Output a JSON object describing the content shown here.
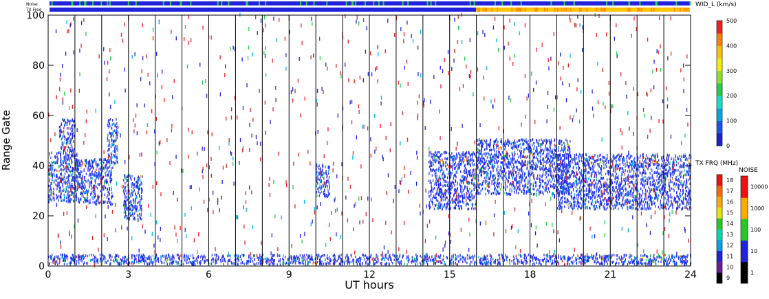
{
  "chart_data": {
    "type": "heatmap",
    "xlabel": "UT hours",
    "ylabel": "Range Gate",
    "xlim": [
      0,
      24
    ],
    "ylim": [
      0,
      100
    ],
    "x_ticks": [
      0,
      3,
      6,
      9,
      12,
      15,
      18,
      21,
      24
    ],
    "y_ticks": [
      0,
      20,
      40,
      60,
      80,
      100
    ],
    "hour_separators": [
      1,
      2,
      3,
      4,
      5,
      6,
      7,
      8,
      9,
      10,
      11,
      12,
      13,
      14,
      15,
      16,
      17,
      18,
      19,
      20,
      21,
      22,
      23
    ],
    "grid": false,
    "top_strips": {
      "noise_label": "Noise",
      "txfreq_label": "TX Freq",
      "txfreq_switch_hour": 16
    },
    "colorbars": {
      "width": {
        "label": "WID_L (km/s)",
        "ticks": [
          0,
          100,
          200,
          300,
          400,
          500
        ],
        "colors": [
          "#1a22cc",
          "#1a55ee",
          "#00a6e6",
          "#14e0c8",
          "#22d046",
          "#8ee028",
          "#f0f000",
          "#ffc000",
          "#ff8000",
          "#ee2222"
        ]
      },
      "tx_freq": {
        "label": "TX FRQ (MHz)",
        "ticks": [
          9,
          10,
          11,
          12,
          13,
          14,
          15,
          16,
          17,
          18
        ],
        "colors": [
          "#000000",
          "#6a1e92",
          "#2222dd",
          "#00a2e8",
          "#00d9b4",
          "#22cc22",
          "#e6e600",
          "#ffaa00",
          "#ff6600",
          "#ee1111"
        ]
      },
      "noise": {
        "label": "NOISE",
        "ticks": [
          "1",
          "10",
          "100",
          "1000",
          "10000"
        ],
        "colors": [
          "#000000",
          "#2222dd",
          "#22cc22",
          "#ffaa00",
          "#ee1111"
        ]
      }
    },
    "echo_regions": [
      {
        "x": [
          0.0,
          1.1
        ],
        "y": [
          25,
          45
        ]
      },
      {
        "x": [
          0.4,
          1.0
        ],
        "y": [
          45,
          58
        ]
      },
      {
        "x": [
          1.0,
          2.4
        ],
        "y": [
          24,
          42
        ]
      },
      {
        "x": [
          2.2,
          2.6
        ],
        "y": [
          40,
          58
        ]
      },
      {
        "x": [
          2.8,
          3.5
        ],
        "y": [
          22,
          36
        ]
      },
      {
        "x": [
          2.8,
          3.5
        ],
        "y": [
          18,
          24
        ]
      },
      {
        "x": [
          10.0,
          10.5
        ],
        "y": [
          27,
          40
        ]
      },
      {
        "x": [
          14.2,
          16.0
        ],
        "y": [
          22,
          45
        ]
      },
      {
        "x": [
          16.0,
          19.5
        ],
        "y": [
          28,
          50
        ]
      },
      {
        "x": [
          19.0,
          24.0
        ],
        "y": [
          22,
          44
        ]
      },
      {
        "x": [
          0.0,
          24.0
        ],
        "y": [
          0,
          4
        ]
      }
    ]
  }
}
